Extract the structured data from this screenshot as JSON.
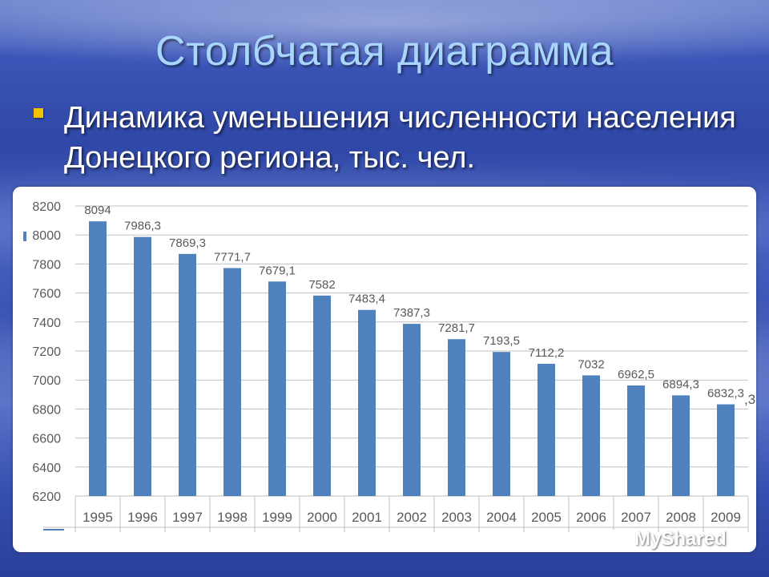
{
  "slide": {
    "title": "Столбчатая диаграмма",
    "bullet": "Динамика уменьшения численности населения Донецкого региона, тыс. чел."
  },
  "chart_data": {
    "type": "bar",
    "categories": [
      "1995",
      "1996",
      "1997",
      "1998",
      "1999",
      "2000",
      "2001",
      "2002",
      "2003",
      "2004",
      "2005",
      "2006",
      "2007",
      "2008",
      "2009"
    ],
    "values": [
      8094,
      7986.3,
      7869.3,
      7771.7,
      7679.1,
      7582,
      7483.4,
      7387.3,
      7281.7,
      7193.5,
      7112.2,
      7032,
      6962.5,
      6894.3,
      6832.3
    ],
    "data_labels": [
      "8094",
      "7986,3",
      "7869,3",
      "7771,7",
      "7679,1",
      "7582",
      "7483,4",
      "7387,3",
      "7281,7",
      "7193,5",
      "7112,2",
      "7032",
      "6962,5",
      "6894,3",
      "6832,3"
    ],
    "y_ticks": [
      "8200",
      "8000",
      "7800",
      "7600",
      "7400",
      "7200",
      "7000",
      "6800",
      "6600",
      "6400",
      "6200"
    ],
    "ylim": [
      6200,
      8200
    ],
    "grid": true,
    "bar_color": "#4f81bd",
    "extra_partial_label": ",3"
  },
  "watermark": {
    "text": "MyShared",
    "icon": "myshared-logo-icon"
  },
  "colors": {
    "title": "#a9d6ff",
    "bullet_marker": "#f2c200",
    "grid": "#bfbfbf",
    "axis_text": "#595959"
  }
}
